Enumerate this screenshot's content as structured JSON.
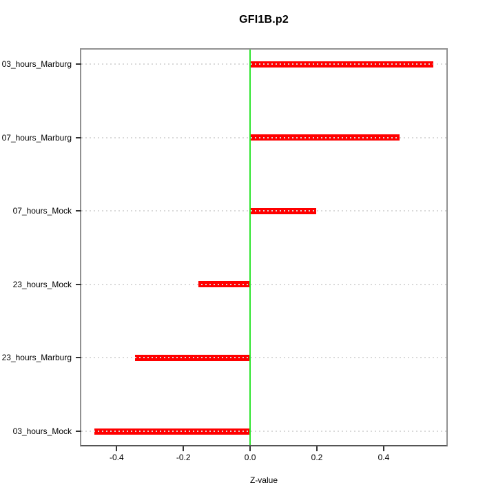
{
  "window": {
    "background": "#ffffff"
  },
  "chart_data": {
    "type": "bar",
    "orientation": "horizontal",
    "title": "GFI1B.p2",
    "xlabel": "Z-value",
    "ylabel": "",
    "categories": [
      "03_hours_Marburg",
      "07_hours_Marburg",
      "07_hours_Mock",
      "23_hours_Mock",
      "23_hours_Marburg",
      "03_hours_Mock"
    ],
    "values": [
      0.548,
      0.447,
      0.198,
      -0.155,
      -0.346,
      -0.466
    ],
    "baseline": 0,
    "zero_line_value": 0,
    "x_tick_labels": [
      "-0.4",
      "-0.2",
      "0.0",
      "0.2",
      "0.4"
    ],
    "x_tick_values": [
      -0.4,
      -0.2,
      0.0,
      0.2,
      0.4
    ],
    "xlim": [
      -0.506,
      0.588
    ],
    "grid": "dotted-horizontal",
    "legend": "none",
    "colors": {
      "bar": "#ff0000",
      "zero_line": "#2ee52e",
      "grid_dots": "#d9d9d9",
      "box_border": "#919191",
      "axis_line": "#555555",
      "tick": "#333333",
      "text": "#000000",
      "background": "#ffffff"
    }
  }
}
